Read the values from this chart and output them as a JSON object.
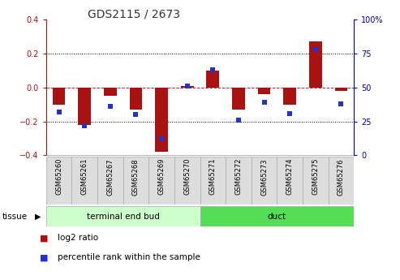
{
  "title": "GDS2115 / 2673",
  "samples": [
    "GSM65260",
    "GSM65261",
    "GSM65267",
    "GSM65268",
    "GSM65269",
    "GSM65270",
    "GSM65271",
    "GSM65272",
    "GSM65273",
    "GSM65274",
    "GSM65275",
    "GSM65276"
  ],
  "log2_ratio": [
    -0.1,
    -0.22,
    -0.05,
    -0.13,
    -0.38,
    0.01,
    0.1,
    -0.13,
    -0.04,
    -0.1,
    0.27,
    -0.02
  ],
  "percentile_rank": [
    32,
    22,
    36,
    30,
    12,
    51,
    63,
    26,
    39,
    31,
    78,
    38
  ],
  "groups": [
    {
      "label": "terminal end bud",
      "indices": [
        0,
        5
      ],
      "color": "#ccffcc",
      "border": "#aaaaaa"
    },
    {
      "label": "duct",
      "indices": [
        6,
        11
      ],
      "color": "#55dd55",
      "border": "#aaaaaa"
    }
  ],
  "ylim_left": [
    -0.4,
    0.4
  ],
  "ylim_right": [
    0,
    100
  ],
  "yticks_left": [
    -0.4,
    -0.2,
    0.0,
    0.2,
    0.4
  ],
  "yticks_right": [
    0,
    25,
    50,
    75,
    100
  ],
  "bar_color": "#aa1111",
  "dot_color": "#2233cc",
  "hline_color": "#cc2222",
  "grid_color": "#000000",
  "bg_color": "#ffffff",
  "left_axis_color": "#aa1111",
  "right_axis_color": "#0000bb",
  "bar_width": 0.5,
  "dot_size": 22,
  "sample_box_color": "#dddddd",
  "sample_box_edge": "#aaaaaa"
}
